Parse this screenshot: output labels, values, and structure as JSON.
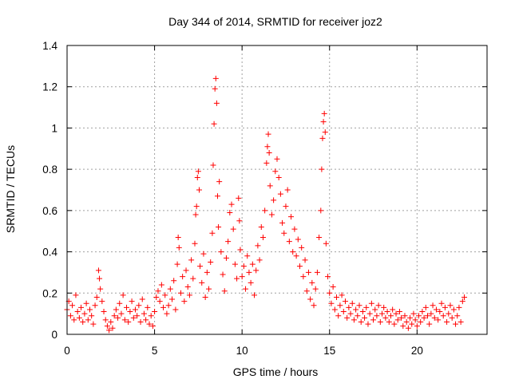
{
  "chart_data": {
    "type": "scatter",
    "title": "Day 344 of 2014, SRMTID for receiver joz2",
    "xlabel": "GPS time / hours",
    "ylabel": "SRMTID / TECUs",
    "xlim": [
      0,
      24
    ],
    "ylim": [
      0,
      1.4
    ],
    "x_ticks": [
      0,
      5,
      10,
      15,
      20
    ],
    "x_tick_labels": [
      "0",
      "5",
      "10",
      "15",
      "20"
    ],
    "y_ticks": [
      0,
      0.2,
      0.4,
      0.6,
      0.8,
      1,
      1.2,
      1.4
    ],
    "y_tick_labels": [
      "0",
      "0.2",
      "0.4",
      "0.6",
      "0.8",
      "1",
      "1.2",
      "1.4"
    ],
    "grid": true,
    "marker": "+",
    "marker_color": "#ff0000",
    "series": [
      {
        "name": "SRMTID",
        "points": [
          [
            0.0,
            0.12
          ],
          [
            0.1,
            0.16
          ],
          [
            0.2,
            0.09
          ],
          [
            0.3,
            0.14
          ],
          [
            0.4,
            0.07
          ],
          [
            0.5,
            0.19
          ],
          [
            0.6,
            0.11
          ],
          [
            0.7,
            0.08
          ],
          [
            0.8,
            0.13
          ],
          [
            0.9,
            0.06
          ],
          [
            1.0,
            0.1
          ],
          [
            1.1,
            0.15
          ],
          [
            1.2,
            0.07
          ],
          [
            1.3,
            0.12
          ],
          [
            1.4,
            0.09
          ],
          [
            1.5,
            0.05
          ],
          [
            1.6,
            0.14
          ],
          [
            1.7,
            0.18
          ],
          [
            1.8,
            0.31
          ],
          [
            1.85,
            0.27
          ],
          [
            1.9,
            0.22
          ],
          [
            2.0,
            0.16
          ],
          [
            2.1,
            0.11
          ],
          [
            2.2,
            0.07
          ],
          [
            2.3,
            0.04
          ],
          [
            2.4,
            0.02
          ],
          [
            2.5,
            0.06
          ],
          [
            2.6,
            0.03
          ],
          [
            2.7,
            0.09
          ],
          [
            2.8,
            0.12
          ],
          [
            2.9,
            0.08
          ],
          [
            3.0,
            0.15
          ],
          [
            3.1,
            0.1
          ],
          [
            3.2,
            0.19
          ],
          [
            3.3,
            0.07
          ],
          [
            3.4,
            0.13
          ],
          [
            3.5,
            0.06
          ],
          [
            3.6,
            0.11
          ],
          [
            3.7,
            0.16
          ],
          [
            3.8,
            0.08
          ],
          [
            3.9,
            0.12
          ],
          [
            4.0,
            0.09
          ],
          [
            4.1,
            0.14
          ],
          [
            4.2,
            0.06
          ],
          [
            4.3,
            0.17
          ],
          [
            4.4,
            0.1
          ],
          [
            4.5,
            0.07
          ],
          [
            4.6,
            0.13
          ],
          [
            4.7,
            0.05
          ],
          [
            4.8,
            0.09
          ],
          [
            4.9,
            0.04
          ],
          [
            5.0,
            0.11
          ],
          [
            5.1,
            0.18
          ],
          [
            5.2,
            0.21
          ],
          [
            5.3,
            0.16
          ],
          [
            5.4,
            0.24
          ],
          [
            5.5,
            0.13
          ],
          [
            5.6,
            0.19
          ],
          [
            5.7,
            0.1
          ],
          [
            5.8,
            0.14
          ],
          [
            5.9,
            0.22
          ],
          [
            6.0,
            0.17
          ],
          [
            6.1,
            0.26
          ],
          [
            6.2,
            0.12
          ],
          [
            6.3,
            0.34
          ],
          [
            6.35,
            0.47
          ],
          [
            6.4,
            0.42
          ],
          [
            6.5,
            0.2
          ],
          [
            6.6,
            0.28
          ],
          [
            6.7,
            0.16
          ],
          [
            6.8,
            0.31
          ],
          [
            6.9,
            0.23
          ],
          [
            7.0,
            0.19
          ],
          [
            7.1,
            0.36
          ],
          [
            7.2,
            0.27
          ],
          [
            7.3,
            0.44
          ],
          [
            7.35,
            0.58
          ],
          [
            7.4,
            0.62
          ],
          [
            7.45,
            0.76
          ],
          [
            7.5,
            0.79
          ],
          [
            7.55,
            0.7
          ],
          [
            7.6,
            0.33
          ],
          [
            7.7,
            0.25
          ],
          [
            7.8,
            0.39
          ],
          [
            7.9,
            0.18
          ],
          [
            8.0,
            0.3
          ],
          [
            8.1,
            0.22
          ],
          [
            8.2,
            0.35
          ],
          [
            8.3,
            0.49
          ],
          [
            8.35,
            0.82
          ],
          [
            8.4,
            1.02
          ],
          [
            8.45,
            1.19
          ],
          [
            8.5,
            1.24
          ],
          [
            8.55,
            1.12
          ],
          [
            8.6,
            0.67
          ],
          [
            8.65,
            0.52
          ],
          [
            8.7,
            0.74
          ],
          [
            8.8,
            0.4
          ],
          [
            8.9,
            0.29
          ],
          [
            9.0,
            0.21
          ],
          [
            9.1,
            0.37
          ],
          [
            9.2,
            0.45
          ],
          [
            9.3,
            0.59
          ],
          [
            9.4,
            0.63
          ],
          [
            9.5,
            0.51
          ],
          [
            9.6,
            0.34
          ],
          [
            9.7,
            0.27
          ],
          [
            9.8,
            0.66
          ],
          [
            9.85,
            0.55
          ],
          [
            9.9,
            0.41
          ],
          [
            10.0,
            0.28
          ],
          [
            10.1,
            0.33
          ],
          [
            10.2,
            0.22
          ],
          [
            10.3,
            0.38
          ],
          [
            10.4,
            0.3
          ],
          [
            10.5,
            0.25
          ],
          [
            10.6,
            0.34
          ],
          [
            10.7,
            0.19
          ],
          [
            10.8,
            0.31
          ],
          [
            10.9,
            0.43
          ],
          [
            11.0,
            0.36
          ],
          [
            11.1,
            0.52
          ],
          [
            11.2,
            0.47
          ],
          [
            11.3,
            0.6
          ],
          [
            11.4,
            0.83
          ],
          [
            11.45,
            0.91
          ],
          [
            11.5,
            0.97
          ],
          [
            11.55,
            0.88
          ],
          [
            11.6,
            0.72
          ],
          [
            11.7,
            0.58
          ],
          [
            11.8,
            0.65
          ],
          [
            11.9,
            0.79
          ],
          [
            12.0,
            0.85
          ],
          [
            12.1,
            0.76
          ],
          [
            12.2,
            0.68
          ],
          [
            12.3,
            0.54
          ],
          [
            12.4,
            0.49
          ],
          [
            12.5,
            0.62
          ],
          [
            12.6,
            0.7
          ],
          [
            12.7,
            0.45
          ],
          [
            12.8,
            0.57
          ],
          [
            12.9,
            0.4
          ],
          [
            13.0,
            0.51
          ],
          [
            13.1,
            0.38
          ],
          [
            13.2,
            0.46
          ],
          [
            13.3,
            0.33
          ],
          [
            13.4,
            0.42
          ],
          [
            13.5,
            0.28
          ],
          [
            13.6,
            0.36
          ],
          [
            13.7,
            0.21
          ],
          [
            13.8,
            0.3
          ],
          [
            13.9,
            0.17
          ],
          [
            14.0,
            0.25
          ],
          [
            14.1,
            0.14
          ],
          [
            14.2,
            0.22
          ],
          [
            14.3,
            0.3
          ],
          [
            14.4,
            0.47
          ],
          [
            14.5,
            0.6
          ],
          [
            14.55,
            0.8
          ],
          [
            14.6,
            0.95
          ],
          [
            14.65,
            1.03
          ],
          [
            14.7,
            1.07
          ],
          [
            14.75,
            0.98
          ],
          [
            14.8,
            0.44
          ],
          [
            14.9,
            0.28
          ],
          [
            15.0,
            0.2
          ],
          [
            15.1,
            0.15
          ],
          [
            15.2,
            0.23
          ],
          [
            15.3,
            0.12
          ],
          [
            15.4,
            0.18
          ],
          [
            15.5,
            0.09
          ],
          [
            15.6,
            0.14
          ],
          [
            15.7,
            0.19
          ],
          [
            15.8,
            0.11
          ],
          [
            15.9,
            0.16
          ],
          [
            16.0,
            0.08
          ],
          [
            16.1,
            0.13
          ],
          [
            16.2,
            0.1
          ],
          [
            16.3,
            0.15
          ],
          [
            16.4,
            0.07
          ],
          [
            16.5,
            0.12
          ],
          [
            16.6,
            0.09
          ],
          [
            16.7,
            0.14
          ],
          [
            16.8,
            0.06
          ],
          [
            16.9,
            0.11
          ],
          [
            17.0,
            0.08
          ],
          [
            17.1,
            0.13
          ],
          [
            17.2,
            0.05
          ],
          [
            17.3,
            0.1
          ],
          [
            17.4,
            0.15
          ],
          [
            17.5,
            0.07
          ],
          [
            17.6,
            0.12
          ],
          [
            17.7,
            0.09
          ],
          [
            17.8,
            0.14
          ],
          [
            17.9,
            0.06
          ],
          [
            18.0,
            0.1
          ],
          [
            18.1,
            0.13
          ],
          [
            18.2,
            0.08
          ],
          [
            18.3,
            0.11
          ],
          [
            18.4,
            0.06
          ],
          [
            18.5,
            0.09
          ],
          [
            18.6,
            0.12
          ],
          [
            18.7,
            0.05
          ],
          [
            18.8,
            0.1
          ],
          [
            18.9,
            0.07
          ],
          [
            19.0,
            0.11
          ],
          [
            19.1,
            0.08
          ],
          [
            19.2,
            0.04
          ],
          [
            19.3,
            0.09
          ],
          [
            19.4,
            0.06
          ],
          [
            19.5,
            0.03
          ],
          [
            19.6,
            0.08
          ],
          [
            19.7,
            0.05
          ],
          [
            19.8,
            0.1
          ],
          [
            19.9,
            0.07
          ],
          [
            20.0,
            0.04
          ],
          [
            20.1,
            0.09
          ],
          [
            20.2,
            0.06
          ],
          [
            20.3,
            0.11
          ],
          [
            20.4,
            0.08
          ],
          [
            20.5,
            0.13
          ],
          [
            20.6,
            0.09
          ],
          [
            20.7,
            0.05
          ],
          [
            20.8,
            0.1
          ],
          [
            20.9,
            0.14
          ],
          [
            21.0,
            0.08
          ],
          [
            21.1,
            0.12
          ],
          [
            21.2,
            0.07
          ],
          [
            21.3,
            0.11
          ],
          [
            21.4,
            0.15
          ],
          [
            21.5,
            0.09
          ],
          [
            21.6,
            0.13
          ],
          [
            21.7,
            0.06
          ],
          [
            21.8,
            0.1
          ],
          [
            21.9,
            0.14
          ],
          [
            22.0,
            0.08
          ],
          [
            22.1,
            0.12
          ],
          [
            22.2,
            0.05
          ],
          [
            22.3,
            0.09
          ],
          [
            22.4,
            0.13
          ],
          [
            22.5,
            0.06
          ],
          [
            22.6,
            0.16
          ],
          [
            22.7,
            0.18
          ]
        ]
      }
    ]
  }
}
